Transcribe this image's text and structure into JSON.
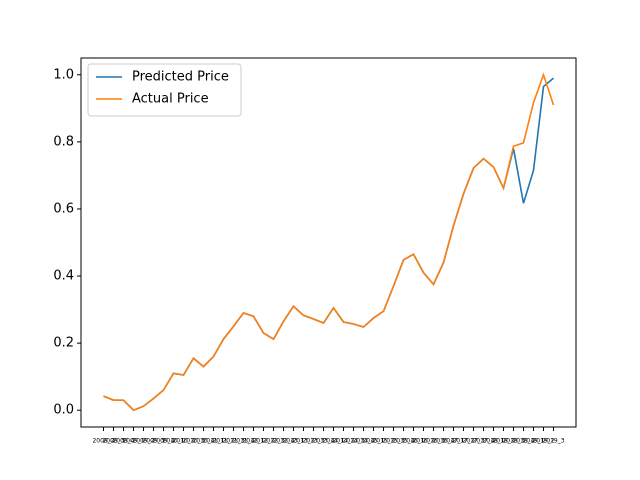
{
  "chart_data": {
    "type": "line",
    "categories": [
      "2008_2",
      "2008_3",
      "2008_4",
      "2009_1",
      "2009_2",
      "2009_3",
      "2009_4",
      "2010_1",
      "2010_2",
      "2010_3",
      "2010_4",
      "2011_1",
      "2011_2",
      "2011_3",
      "2011_4",
      "2012_1",
      "2012_2",
      "2012_3",
      "2012_4",
      "2013_1",
      "2013_2",
      "2013_3",
      "2013_4",
      "2014_1",
      "2014_2",
      "2014_3",
      "2014_4",
      "2015_1",
      "2015_2",
      "2015_3",
      "2015_4",
      "2016_1",
      "2016_2",
      "2016_3",
      "2016_4",
      "2017_1",
      "2017_2",
      "2017_3",
      "2017_4",
      "2018_1",
      "2018_2",
      "2018_3",
      "2018_4",
      "2019_1",
      "2019_2",
      "2019_3"
    ],
    "series": [
      {
        "name": "Predicted Price",
        "color": "#1f77b4",
        "values": [
          0.042,
          0.03,
          0.03,
          0.0,
          0.012,
          0.035,
          0.06,
          0.11,
          0.105,
          0.155,
          0.13,
          0.16,
          0.212,
          0.25,
          0.29,
          0.28,
          0.23,
          0.212,
          0.265,
          0.31,
          0.283,
          0.272,
          0.26,
          0.305,
          0.263,
          0.257,
          0.248,
          0.275,
          0.295,
          0.37,
          0.448,
          0.465,
          0.41,
          0.375,
          0.44,
          0.55,
          0.645,
          0.722,
          0.75,
          0.725,
          0.662,
          0.78,
          0.617,
          0.715,
          0.965,
          0.99
        ]
      },
      {
        "name": "Actual Price",
        "color": "#ff7f0e",
        "values": [
          0.042,
          0.03,
          0.03,
          0.0,
          0.012,
          0.035,
          0.06,
          0.11,
          0.105,
          0.155,
          0.13,
          0.16,
          0.212,
          0.25,
          0.29,
          0.28,
          0.23,
          0.212,
          0.265,
          0.31,
          0.283,
          0.272,
          0.26,
          0.305,
          0.263,
          0.257,
          0.248,
          0.275,
          0.295,
          0.37,
          0.448,
          0.465,
          0.41,
          0.375,
          0.44,
          0.55,
          0.645,
          0.722,
          0.75,
          0.725,
          0.662,
          0.787,
          0.797,
          0.917,
          1.0,
          0.91
        ]
      }
    ],
    "ylim": [
      -0.05,
      1.05
    ],
    "yticks": [
      {
        "value": 0,
        "label": "0.0"
      },
      {
        "value": 0.2,
        "label": "0.2"
      },
      {
        "value": 0.4,
        "label": "0.4"
      },
      {
        "value": 0.6,
        "label": "0.6"
      },
      {
        "value": 0.8,
        "label": "0.8"
      },
      {
        "value": 1,
        "label": "1.0"
      }
    ],
    "legend": "upper left"
  }
}
